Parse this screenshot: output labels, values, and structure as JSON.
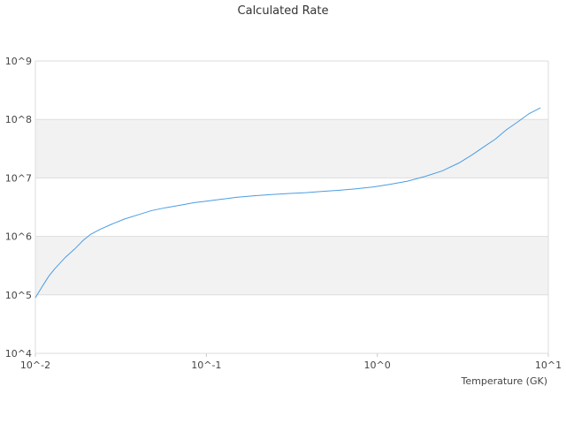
{
  "chart_data": {
    "type": "line",
    "title": "Calculated Rate",
    "xlabel": "Temperature (GK)",
    "ylabel": "",
    "x_scale": "log",
    "y_scale": "log",
    "xlim": [
      0.01,
      10
    ],
    "ylim": [
      10000,
      1000000000
    ],
    "x_ticks": [
      {
        "value": 0.01,
        "label": "10^-2"
      },
      {
        "value": 0.1,
        "label": "10^-1"
      },
      {
        "value": 1,
        "label": "10^0"
      },
      {
        "value": 10,
        "label": "10^1"
      }
    ],
    "y_ticks": [
      {
        "value": 10000,
        "label": "10^4"
      },
      {
        "value": 100000,
        "label": "10^5"
      },
      {
        "value": 1000000,
        "label": "10^6"
      },
      {
        "value": 10000000,
        "label": "10^7"
      },
      {
        "value": 100000000,
        "label": "10^8"
      },
      {
        "value": 1000000000,
        "label": "10^9"
      }
    ],
    "alternating_bands": true,
    "legend": "none",
    "series": [
      {
        "color": "#4a9de3",
        "points": [
          [
            0.01,
            89000
          ],
          [
            0.011,
            141000
          ],
          [
            0.012,
            210000
          ],
          [
            0.013,
            280000
          ],
          [
            0.015,
            440000
          ],
          [
            0.017,
            610000
          ],
          [
            0.019,
            850000
          ],
          [
            0.021,
            1080000
          ],
          [
            0.024,
            1330000
          ],
          [
            0.028,
            1620000
          ],
          [
            0.033,
            1970000
          ],
          [
            0.04,
            2350000
          ],
          [
            0.048,
            2770000
          ],
          [
            0.058,
            3100000
          ],
          [
            0.07,
            3400000
          ],
          [
            0.085,
            3780000
          ],
          [
            0.1,
            4000000
          ],
          [
            0.12,
            4280000
          ],
          [
            0.15,
            4650000
          ],
          [
            0.19,
            4950000
          ],
          [
            0.24,
            5200000
          ],
          [
            0.3,
            5400000
          ],
          [
            0.38,
            5600000
          ],
          [
            0.48,
            5900000
          ],
          [
            0.6,
            6150000
          ],
          [
            0.75,
            6500000
          ],
          [
            0.95,
            7000000
          ],
          [
            1.2,
            7800000
          ],
          [
            1.5,
            8800000
          ],
          [
            1.9,
            10600000
          ],
          [
            2.4,
            13200000
          ],
          [
            3.0,
            18000000
          ],
          [
            3.6,
            25000000
          ],
          [
            4.2,
            34000000
          ],
          [
            4.9,
            46000000
          ],
          [
            5.7,
            67000000
          ],
          [
            6.6,
            90000000
          ],
          [
            7.7,
            125000000
          ],
          [
            9.0,
            158000000
          ]
        ]
      }
    ]
  }
}
